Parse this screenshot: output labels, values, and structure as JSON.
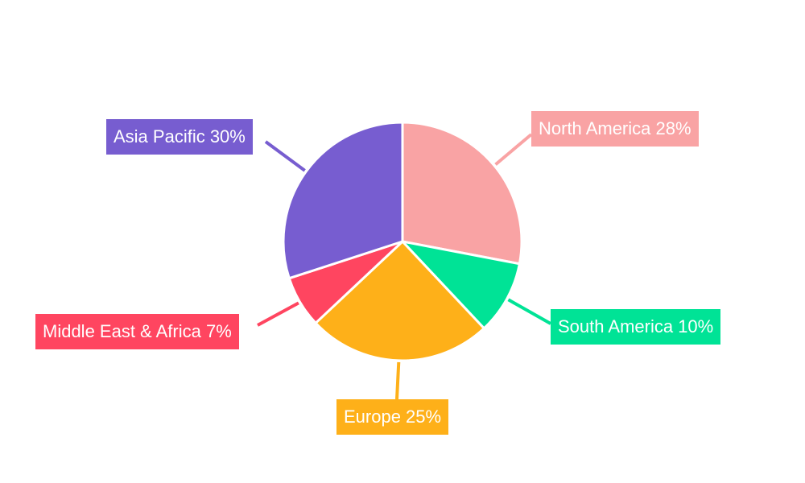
{
  "chart_data": {
    "type": "pie",
    "title": "",
    "start_angle": "top",
    "direction": "clockwise",
    "legend": "none",
    "slices": [
      {
        "label": "North America",
        "value": 28,
        "display": "North America 28%",
        "color": "#F9A3A4"
      },
      {
        "label": "South America",
        "value": 10,
        "display": "South America 10%",
        "color": "#00E396"
      },
      {
        "label": "Europe",
        "value": 25,
        "display": "Europe 25%",
        "color": "#FEB019"
      },
      {
        "label": "Middle East & Africa",
        "value": 7,
        "display": "Middle East & Africa 7%",
        "color": "#FF4560"
      },
      {
        "label": "Asia Pacific",
        "value": 30,
        "display": "Asia Pacific 30%",
        "color": "#775DD0"
      }
    ]
  }
}
